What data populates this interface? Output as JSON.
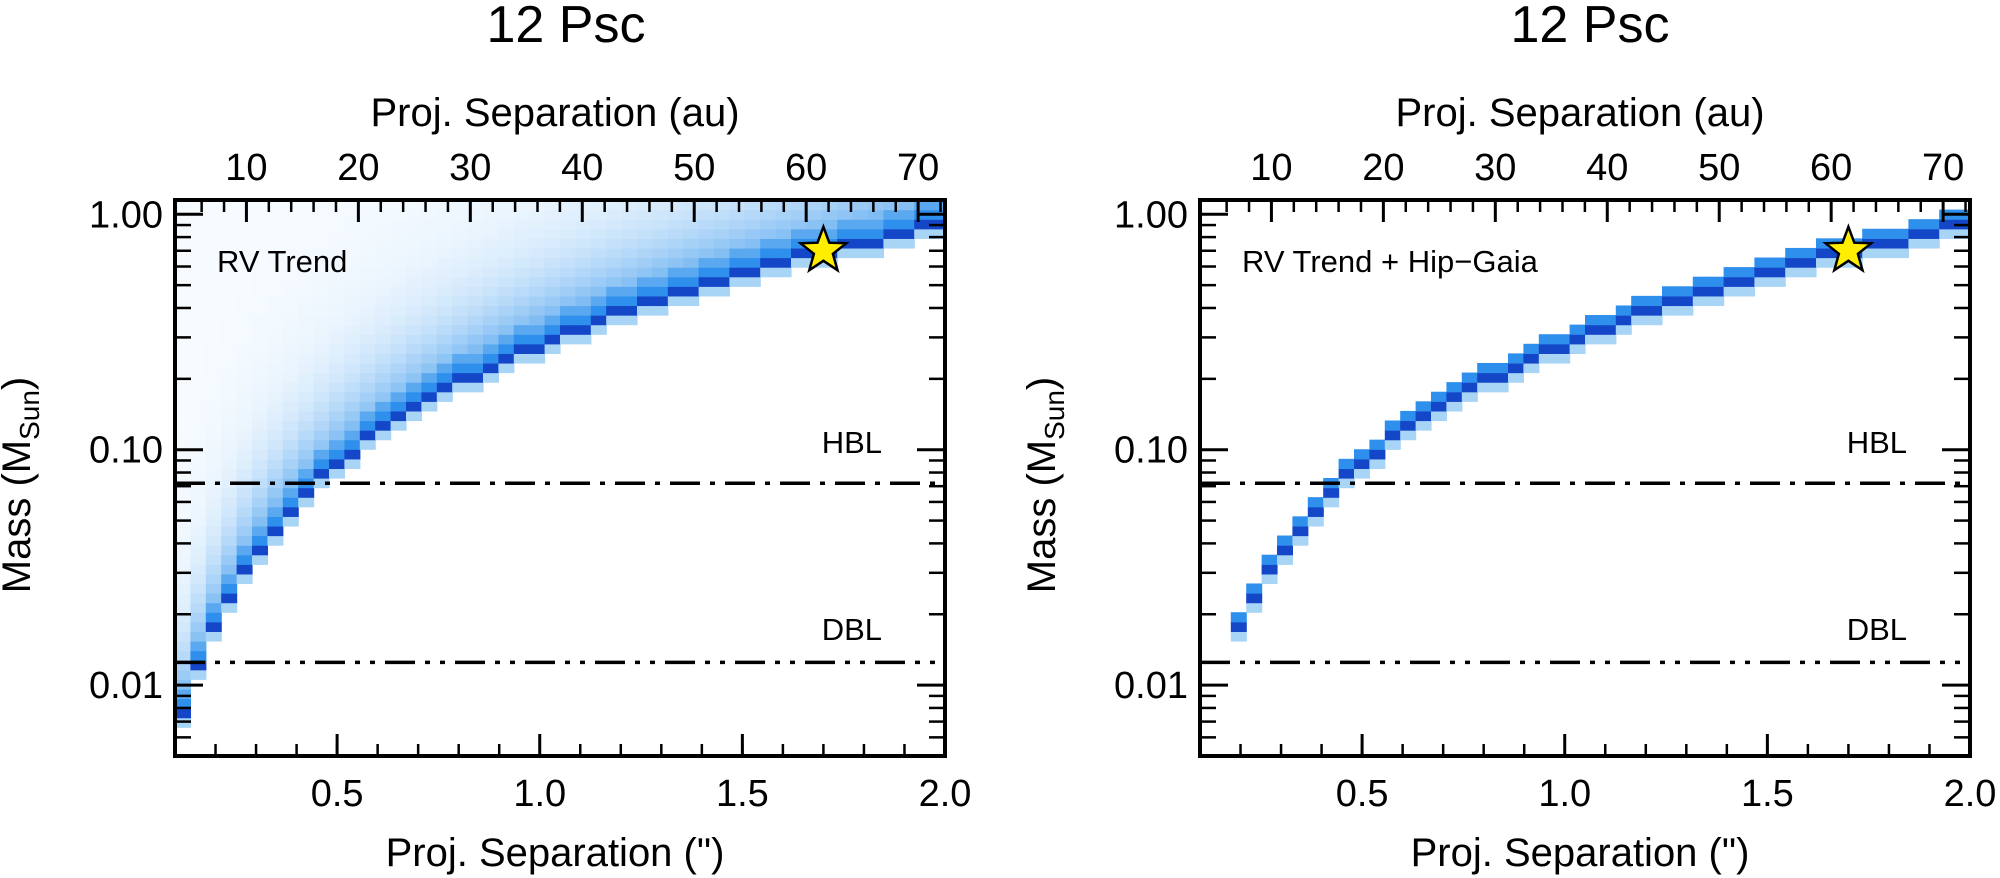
{
  "figure": {
    "background": "#ffffff"
  },
  "chart_data": [
    {
      "type": "heatmap",
      "title": "12 Psc",
      "annotation": "RV Trend",
      "xlabel": "Proj. Separation (\")",
      "xlabel_top": "Proj. Separation (au)",
      "ylabel": "Mass (M",
      "ylabel_sub": "Sun",
      "ylabel_close": ")",
      "xlim": [
        0.1,
        2.0
      ],
      "ylim": [
        0.005,
        1.15
      ],
      "yscale": "log",
      "au_per_arcsec": 36.2,
      "xticks": [
        0.5,
        1.0,
        1.5,
        2.0
      ],
      "xtick_labels": [
        "0.5",
        "1.0",
        "1.5",
        "2.0"
      ],
      "xticks_top": [
        10,
        20,
        30,
        40,
        50,
        60,
        70
      ],
      "xtick_labels_top": [
        "10",
        "20",
        "30",
        "40",
        "50",
        "60",
        "70"
      ],
      "yticks": [
        0.01,
        0.1,
        1.0
      ],
      "ytick_labels": [
        "0.01",
        "0.10",
        "1.00"
      ],
      "relation": {
        "mass_at_2arcsec": 0.92,
        "power": 1.7
      },
      "distribution": "lower envelope with extended tail to higher masses",
      "lines": [
        {
          "label": "HBL",
          "y": 0.072,
          "style": "dash-dot"
        },
        {
          "label": "DBL",
          "y": 0.0125,
          "style": "dash-dot-dot"
        }
      ],
      "star": {
        "x": 1.7,
        "y": 0.7
      }
    },
    {
      "type": "heatmap",
      "title": "12 Psc",
      "annotation": "RV Trend + Hip−Gaia",
      "xlabel": "Proj. Separation (\")",
      "xlabel_top": "Proj. Separation (au)",
      "ylabel": "Mass (M",
      "ylabel_sub": "Sun",
      "ylabel_close": ")",
      "xlim": [
        0.1,
        2.0
      ],
      "ylim": [
        0.005,
        1.15
      ],
      "yscale": "log",
      "au_per_arcsec": 36.2,
      "xticks": [
        0.5,
        1.0,
        1.5,
        2.0
      ],
      "xtick_labels": [
        "0.5",
        "1.0",
        "1.5",
        "2.0"
      ],
      "xticks_top": [
        10,
        20,
        30,
        40,
        50,
        60,
        70
      ],
      "xtick_labels_top": [
        "10",
        "20",
        "30",
        "40",
        "50",
        "60",
        "70"
      ],
      "yticks": [
        0.01,
        0.1,
        1.0
      ],
      "ytick_labels": [
        "0.01",
        "0.10",
        "1.00"
      ],
      "relation": {
        "mass_at_2arcsec": 0.92,
        "power": 1.7
      },
      "distribution": "narrow curve only",
      "x_start": 0.19,
      "lines": [
        {
          "label": "HBL",
          "y": 0.072,
          "style": "dash-dot"
        },
        {
          "label": "DBL",
          "y": 0.0125,
          "style": "dash-dot-dot"
        }
      ],
      "star": {
        "x": 1.7,
        "y": 0.7
      }
    }
  ],
  "colors": {
    "dark": "#1446c8",
    "mid": "#2f8fec",
    "light": "#a8d4f6",
    "faint": "#dcedfa",
    "star_fill": "#ffee00",
    "axis": "#000000"
  }
}
